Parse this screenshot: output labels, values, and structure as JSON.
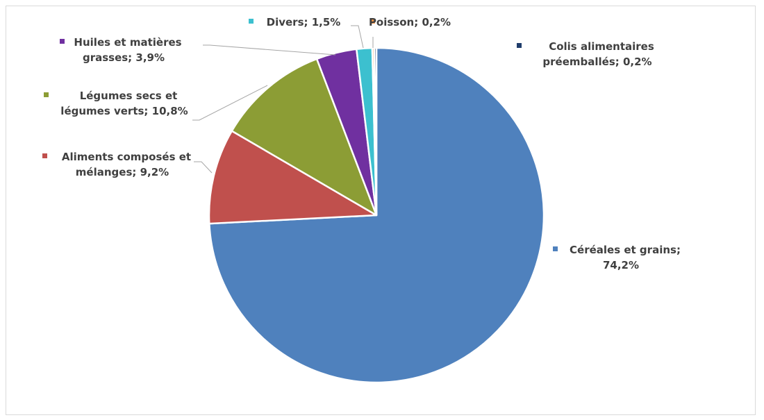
{
  "chart_data": {
    "type": "pie",
    "title": "",
    "slices": [
      {
        "name": "Céréales et grains",
        "value": 74.2,
        "label_lines": [
          "Céréales et grains;",
          "74,2%"
        ],
        "color": "#4F81BD"
      },
      {
        "name": "Aliments composés et mélanges",
        "value": 9.2,
        "label_lines": [
          "Aliments composés et",
          "mélanges; 9,2%"
        ],
        "color": "#C0504D"
      },
      {
        "name": "Légumes secs et légumes verts",
        "value": 10.8,
        "label_lines": [
          "Légumes secs et",
          "légumes verts; 10,8%"
        ],
        "color": "#8C9D35"
      },
      {
        "name": "Huiles et matières grasses",
        "value": 3.9,
        "label_lines": [
          "Huiles et matières",
          "grasses; 3,9%"
        ],
        "color": "#7030A0"
      },
      {
        "name": "Divers",
        "value": 1.5,
        "label_lines": [
          "Divers; 1,5%"
        ],
        "color": "#3CC0CF"
      },
      {
        "name": "Poisson",
        "value": 0.2,
        "label_lines": [
          "Poisson; 0,2%"
        ],
        "color": "#F79646"
      },
      {
        "name": "Colis alimentaires préemballés",
        "value": 0.2,
        "label_lines": [
          "Colis alimentaires",
          "préemballés; 0,2%"
        ],
        "color": "#1F3D6B"
      }
    ]
  }
}
